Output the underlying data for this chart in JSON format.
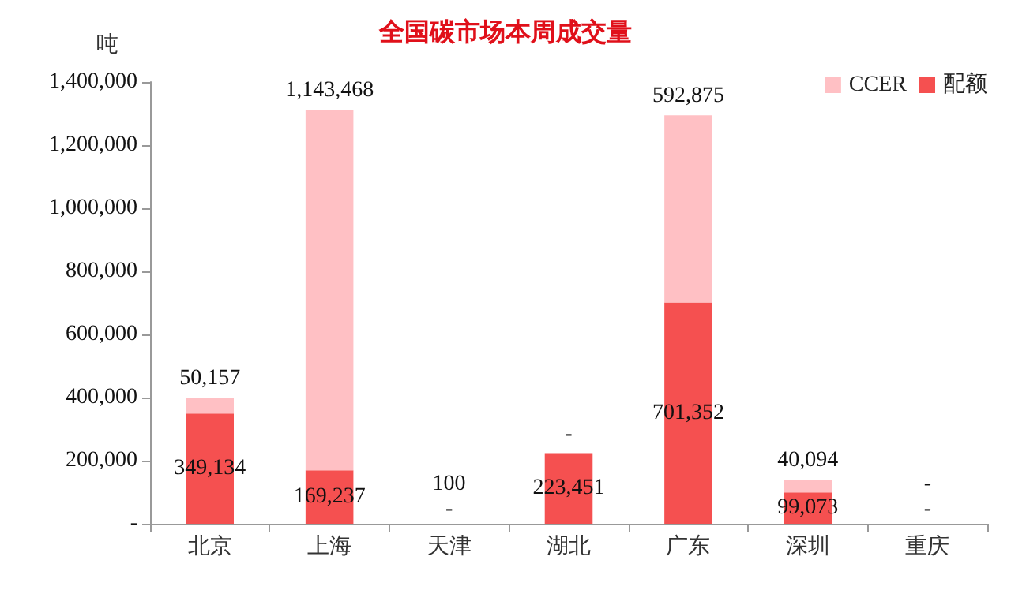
{
  "chart_data": {
    "type": "bar",
    "title": "全国碳市场本周成交量",
    "ylabel": "吨",
    "categories": [
      "北京",
      "上海",
      "天津",
      "湖北",
      "广东",
      "深圳",
      "重庆"
    ],
    "stacked": true,
    "series": [
      {
        "name": "配额",
        "color": "#f55050",
        "values": [
          349134,
          169237,
          0,
          223451,
          701352,
          99073,
          0
        ],
        "value_labels": [
          "349,134",
          "169,237",
          "-",
          "223,451",
          "701,352",
          "99,073",
          "-"
        ]
      },
      {
        "name": "CCER",
        "color": "#ffc0c4",
        "values": [
          50157,
          1143468,
          100,
          0,
          592875,
          40094,
          0
        ],
        "value_labels": [
          "50,157",
          "1,143,468",
          "100",
          "-",
          "592,875",
          "40,094",
          "-"
        ]
      }
    ],
    "ylim": [
      0,
      1400000
    ],
    "yticks": [
      {
        "value": 0,
        "label": "-"
      },
      {
        "value": 200000,
        "label": "200,000"
      },
      {
        "value": 400000,
        "label": "400,000"
      },
      {
        "value": 600000,
        "label": "600,000"
      },
      {
        "value": 800000,
        "label": "800,000"
      },
      {
        "value": 1000000,
        "label": "1,000,000"
      },
      {
        "value": 1200000,
        "label": "1,200,000"
      },
      {
        "value": 1400000,
        "label": "1,400,000"
      }
    ],
    "legend": "top right",
    "grid": false
  }
}
